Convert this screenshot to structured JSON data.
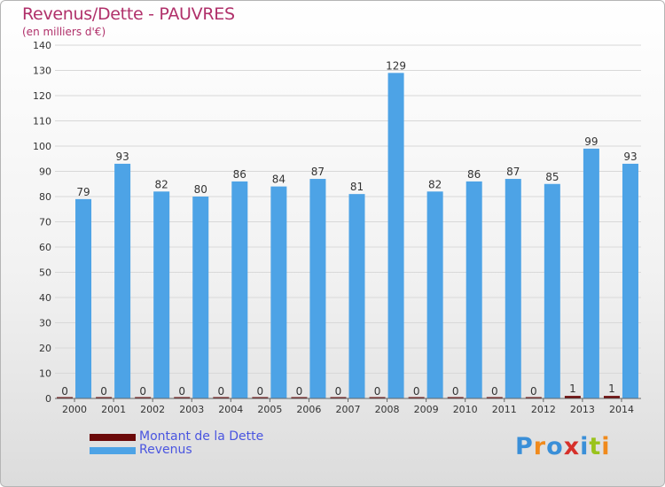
{
  "chart_data": {
    "type": "bar",
    "title": "Revenus/Dette - PAUVRES",
    "subtitle": "(en milliers d'€)",
    "xlabel": "",
    "ylabel": "",
    "ylim": [
      0,
      140
    ],
    "yticks": [
      0,
      10,
      20,
      30,
      40,
      50,
      60,
      70,
      80,
      90,
      100,
      110,
      120,
      130,
      140
    ],
    "grid": true,
    "categories": [
      "2000",
      "2001",
      "2002",
      "2003",
      "2004",
      "2005",
      "2006",
      "2007",
      "2008",
      "2009",
      "2010",
      "2011",
      "2012",
      "2013",
      "2014"
    ],
    "series": [
      {
        "name": "Montant de la Dette",
        "color": "#6b0a0a",
        "values": [
          0,
          0,
          0,
          0,
          0,
          0,
          0,
          0,
          0,
          0,
          0,
          0,
          0,
          1,
          1
        ]
      },
      {
        "name": "Revenus",
        "color": "#4da3e6",
        "values": [
          79,
          93,
          82,
          80,
          86,
          84,
          87,
          81,
          129,
          82,
          86,
          87,
          85,
          99,
          93
        ]
      }
    ],
    "legend_position": "bottom-left"
  },
  "branding": {
    "logo_text": "Proxiti",
    "logo_colors": [
      "#3a8fd8",
      "#f08a1c",
      "#3a8fd8",
      "#d6302a",
      "#3a8fd8",
      "#9ac31c",
      "#f08a1c"
    ]
  }
}
